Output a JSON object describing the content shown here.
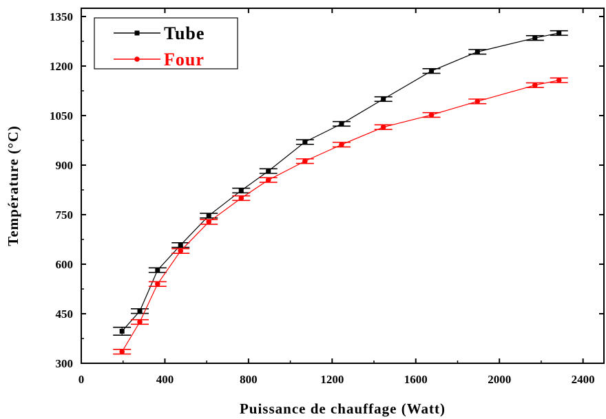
{
  "chart_data": {
    "type": "line",
    "xlabel": "Puissance de chauffage (Watt)",
    "ylabel": "Température (°C)",
    "xlim": [
      0,
      2500
    ],
    "ylim": [
      300,
      1375
    ],
    "xticks": [
      0,
      400,
      800,
      1200,
      1600,
      2000,
      2400
    ],
    "yticks": [
      300,
      450,
      600,
      750,
      900,
      1050,
      1200,
      1350
    ],
    "grid": false,
    "legend_position": "top-left",
    "series": [
      {
        "name": "Tube",
        "color": "#000000",
        "marker": "square",
        "x": [
          195,
          280,
          365,
          475,
          610,
          765,
          895,
          1070,
          1245,
          1445,
          1675,
          1895,
          2170,
          2285
        ],
        "y": [
          397,
          458,
          582,
          658,
          747,
          823,
          882,
          970,
          1025,
          1100,
          1185,
          1243,
          1285,
          1300
        ],
        "error": [
          12,
          7,
          7,
          7,
          7,
          7,
          7,
          7,
          7,
          7,
          7,
          7,
          7,
          7
        ]
      },
      {
        "name": "Four",
        "color": "#ff0000",
        "marker": "circle",
        "x": [
          195,
          280,
          365,
          475,
          610,
          765,
          895,
          1070,
          1245,
          1445,
          1675,
          1895,
          2170,
          2285
        ],
        "y": [
          335,
          425,
          540,
          640,
          728,
          800,
          855,
          912,
          962,
          1015,
          1052,
          1093,
          1142,
          1157
        ],
        "error": [
          7,
          7,
          7,
          7,
          7,
          7,
          7,
          7,
          7,
          7,
          7,
          7,
          7,
          7
        ]
      }
    ]
  }
}
